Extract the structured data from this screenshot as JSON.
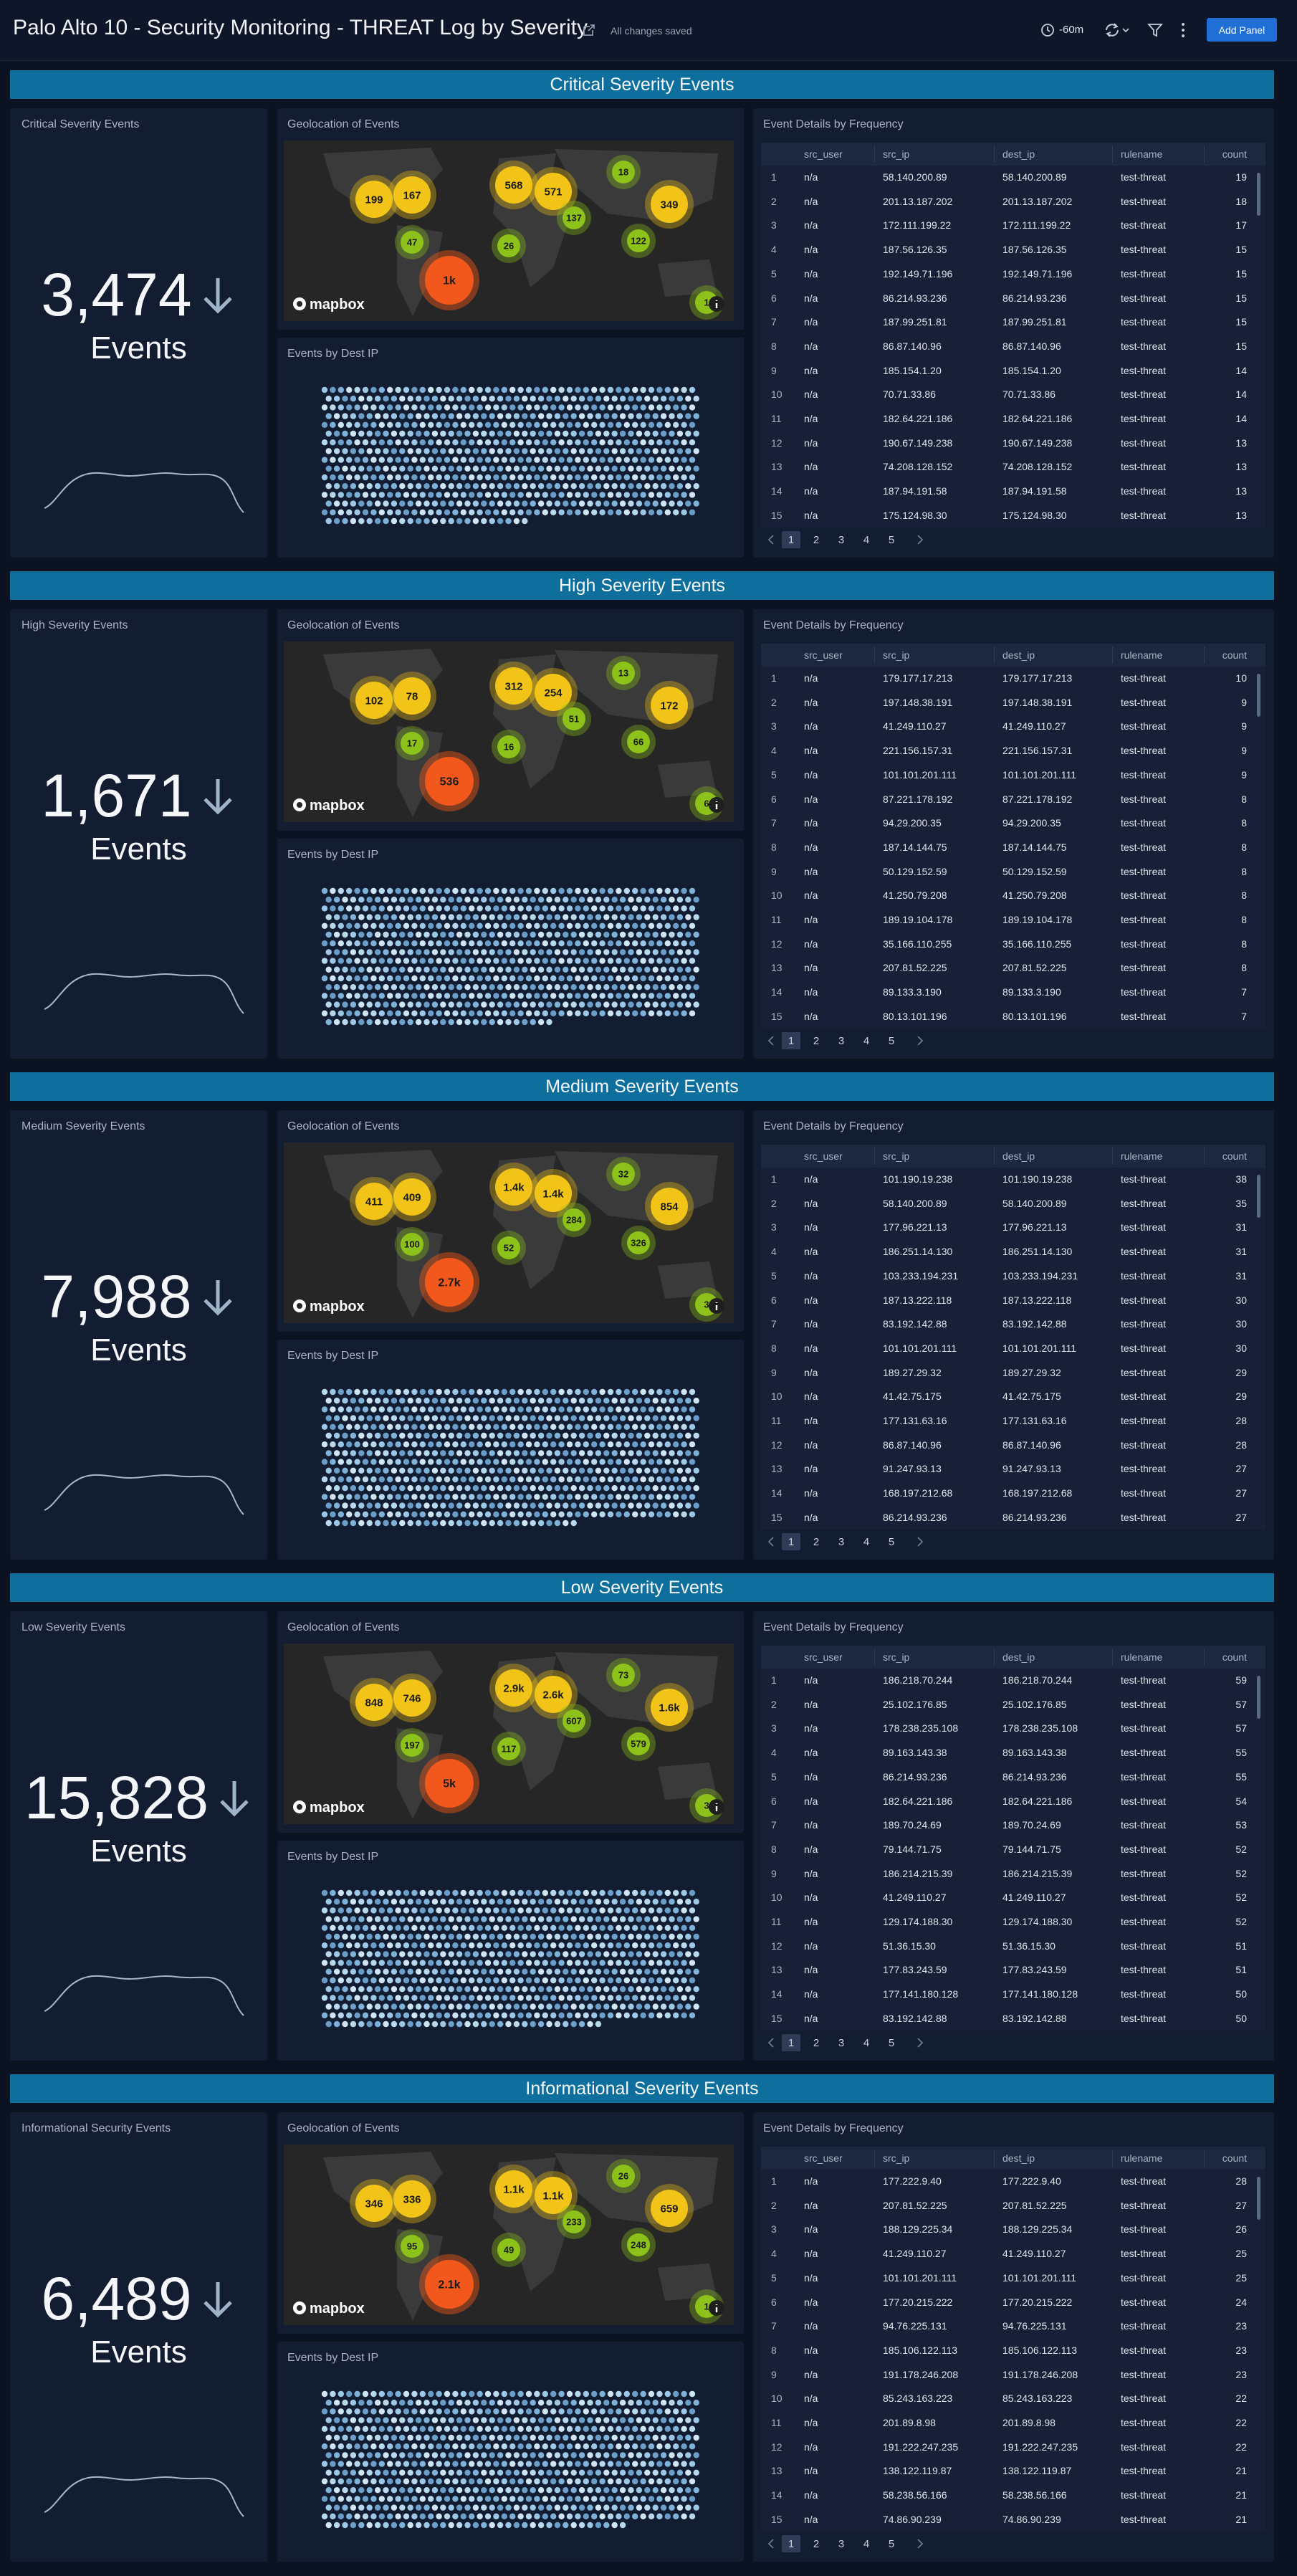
{
  "header": {
    "title": "Palo Alto 10 - Security Monitoring - THREAT Log by Severity",
    "status": "All changes saved",
    "time_range": "-60m",
    "add_panel": "Add Panel"
  },
  "sections": [
    {
      "title": "Critical Severity Events",
      "single": {
        "title": "Critical Severity Events",
        "value": "3,474",
        "unit": "Events"
      },
      "map": {
        "title": "Geolocation of Events",
        "clusters": [
          "199",
          "167",
          "568",
          "571",
          "18",
          "137",
          "349",
          "47",
          "26",
          "122",
          "1k",
          "1"
        ],
        "logo": "mapbox"
      },
      "honeycomb": {
        "title": "Events by Dest IP"
      },
      "table": {
        "title": "Event Details by Frequency",
        "columns": [
          "src_user",
          "src_ip",
          "dest_ip",
          "rulename",
          "count"
        ],
        "rows": [
          [
            1,
            "n/a",
            "58.140.200.89",
            "58.140.200.89",
            "test-threat",
            19
          ],
          [
            2,
            "n/a",
            "201.13.187.202",
            "201.13.187.202",
            "test-threat",
            18
          ],
          [
            3,
            "n/a",
            "172.111.199.22",
            "172.111.199.22",
            "test-threat",
            17
          ],
          [
            4,
            "n/a",
            "187.56.126.35",
            "187.56.126.35",
            "test-threat",
            15
          ],
          [
            5,
            "n/a",
            "192.149.71.196",
            "192.149.71.196",
            "test-threat",
            15
          ],
          [
            6,
            "n/a",
            "86.214.93.236",
            "86.214.93.236",
            "test-threat",
            15
          ],
          [
            7,
            "n/a",
            "187.99.251.81",
            "187.99.251.81",
            "test-threat",
            15
          ],
          [
            8,
            "n/a",
            "86.87.140.96",
            "86.87.140.96",
            "test-threat",
            15
          ],
          [
            9,
            "n/a",
            "185.154.1.20",
            "185.154.1.20",
            "test-threat",
            14
          ],
          [
            10,
            "n/a",
            "70.71.33.86",
            "70.71.33.86",
            "test-threat",
            14
          ],
          [
            11,
            "n/a",
            "182.64.221.186",
            "182.64.221.186",
            "test-threat",
            14
          ],
          [
            12,
            "n/a",
            "190.67.149.238",
            "190.67.149.238",
            "test-threat",
            13
          ],
          [
            13,
            "n/a",
            "74.208.128.152",
            "74.208.128.152",
            "test-threat",
            13
          ],
          [
            14,
            "n/a",
            "187.94.191.58",
            "187.94.191.58",
            "test-threat",
            13
          ],
          [
            15,
            "n/a",
            "175.124.98.30",
            "175.124.98.30",
            "test-threat",
            13
          ]
        ],
        "pages": [
          1,
          2,
          3,
          4,
          5
        ]
      }
    },
    {
      "title": "High Severity Events",
      "single": {
        "title": "High Severity Events",
        "value": "1,671",
        "unit": "Events"
      },
      "map": {
        "title": "Geolocation of Events",
        "clusters": [
          "102",
          "78",
          "312",
          "254",
          "13",
          "51",
          "172",
          "17",
          "16",
          "66",
          "536",
          "6"
        ],
        "logo": "mapbox"
      },
      "honeycomb": {
        "title": "Events by Dest IP"
      },
      "table": {
        "title": "Event Details by Frequency",
        "columns": [
          "src_user",
          "src_ip",
          "dest_ip",
          "rulename",
          "count"
        ],
        "rows": [
          [
            1,
            "n/a",
            "179.177.17.213",
            "179.177.17.213",
            "test-threat",
            10
          ],
          [
            2,
            "n/a",
            "197.148.38.191",
            "197.148.38.191",
            "test-threat",
            9
          ],
          [
            3,
            "n/a",
            "41.249.110.27",
            "41.249.110.27",
            "test-threat",
            9
          ],
          [
            4,
            "n/a",
            "221.156.157.31",
            "221.156.157.31",
            "test-threat",
            9
          ],
          [
            5,
            "n/a",
            "101.101.201.111",
            "101.101.201.111",
            "test-threat",
            9
          ],
          [
            6,
            "n/a",
            "87.221.178.192",
            "87.221.178.192",
            "test-threat",
            8
          ],
          [
            7,
            "n/a",
            "94.29.200.35",
            "94.29.200.35",
            "test-threat",
            8
          ],
          [
            8,
            "n/a",
            "187.14.144.75",
            "187.14.144.75",
            "test-threat",
            8
          ],
          [
            9,
            "n/a",
            "50.129.152.59",
            "50.129.152.59",
            "test-threat",
            8
          ],
          [
            10,
            "n/a",
            "41.250.79.208",
            "41.250.79.208",
            "test-threat",
            8
          ],
          [
            11,
            "n/a",
            "189.19.104.178",
            "189.19.104.178",
            "test-threat",
            8
          ],
          [
            12,
            "n/a",
            "35.166.110.255",
            "35.166.110.255",
            "test-threat",
            8
          ],
          [
            13,
            "n/a",
            "207.81.52.225",
            "207.81.52.225",
            "test-threat",
            8
          ],
          [
            14,
            "n/a",
            "89.133.3.190",
            "89.133.3.190",
            "test-threat",
            7
          ],
          [
            15,
            "n/a",
            "80.13.101.196",
            "80.13.101.196",
            "test-threat",
            7
          ]
        ],
        "pages": [
          1,
          2,
          3,
          4,
          5
        ]
      }
    },
    {
      "title": "Medium Severity Events",
      "single": {
        "title": "Medium Severity Events",
        "value": "7,988",
        "unit": "Events"
      },
      "map": {
        "title": "Geolocation of Events",
        "clusters": [
          "411",
          "409",
          "1.4k",
          "1.4k",
          "32",
          "284",
          "854",
          "100",
          "52",
          "326",
          "2.7k",
          "3"
        ],
        "logo": "mapbox"
      },
      "honeycomb": {
        "title": "Events by Dest IP"
      },
      "table": {
        "title": "Event Details by Frequency",
        "columns": [
          "src_user",
          "src_ip",
          "dest_ip",
          "rulename",
          "count"
        ],
        "rows": [
          [
            1,
            "n/a",
            "101.190.19.238",
            "101.190.19.238",
            "test-threat",
            38
          ],
          [
            2,
            "n/a",
            "58.140.200.89",
            "58.140.200.89",
            "test-threat",
            35
          ],
          [
            3,
            "n/a",
            "177.96.221.13",
            "177.96.221.13",
            "test-threat",
            31
          ],
          [
            4,
            "n/a",
            "186.251.14.130",
            "186.251.14.130",
            "test-threat",
            31
          ],
          [
            5,
            "n/a",
            "103.233.194.231",
            "103.233.194.231",
            "test-threat",
            31
          ],
          [
            6,
            "n/a",
            "187.13.222.118",
            "187.13.222.118",
            "test-threat",
            30
          ],
          [
            7,
            "n/a",
            "83.192.142.88",
            "83.192.142.88",
            "test-threat",
            30
          ],
          [
            8,
            "n/a",
            "101.101.201.111",
            "101.101.201.111",
            "test-threat",
            30
          ],
          [
            9,
            "n/a",
            "189.27.29.32",
            "189.27.29.32",
            "test-threat",
            29
          ],
          [
            10,
            "n/a",
            "41.42.75.175",
            "41.42.75.175",
            "test-threat",
            29
          ],
          [
            11,
            "n/a",
            "177.131.63.16",
            "177.131.63.16",
            "test-threat",
            28
          ],
          [
            12,
            "n/a",
            "86.87.140.96",
            "86.87.140.96",
            "test-threat",
            28
          ],
          [
            13,
            "n/a",
            "91.247.93.13",
            "91.247.93.13",
            "test-threat",
            27
          ],
          [
            14,
            "n/a",
            "168.197.212.68",
            "168.197.212.68",
            "test-threat",
            27
          ],
          [
            15,
            "n/a",
            "86.214.93.236",
            "86.214.93.236",
            "test-threat",
            27
          ]
        ],
        "pages": [
          1,
          2,
          3,
          4,
          5
        ]
      }
    },
    {
      "title": "Low Severity Events",
      "single": {
        "title": "Low Severity Events",
        "value": "15,828",
        "unit": "Events"
      },
      "map": {
        "title": "Geolocation of Events",
        "clusters": [
          "848",
          "746",
          "2.9k",
          "2.6k",
          "73",
          "607",
          "1.6k",
          "197",
          "117",
          "579",
          "5k",
          "3"
        ],
        "logo": "mapbox"
      },
      "honeycomb": {
        "title": "Events by Dest IP"
      },
      "table": {
        "title": "Event Details by Frequency",
        "columns": [
          "src_user",
          "src_ip",
          "dest_ip",
          "rulename",
          "count"
        ],
        "rows": [
          [
            1,
            "n/a",
            "186.218.70.244",
            "186.218.70.244",
            "test-threat",
            59
          ],
          [
            2,
            "n/a",
            "25.102.176.85",
            "25.102.176.85",
            "test-threat",
            57
          ],
          [
            3,
            "n/a",
            "178.238.235.108",
            "178.238.235.108",
            "test-threat",
            57
          ],
          [
            4,
            "n/a",
            "89.163.143.38",
            "89.163.143.38",
            "test-threat",
            55
          ],
          [
            5,
            "n/a",
            "86.214.93.236",
            "86.214.93.236",
            "test-threat",
            55
          ],
          [
            6,
            "n/a",
            "182.64.221.186",
            "182.64.221.186",
            "test-threat",
            54
          ],
          [
            7,
            "n/a",
            "189.70.24.69",
            "189.70.24.69",
            "test-threat",
            53
          ],
          [
            8,
            "n/a",
            "79.144.71.75",
            "79.144.71.75",
            "test-threat",
            52
          ],
          [
            9,
            "n/a",
            "186.214.215.39",
            "186.214.215.39",
            "test-threat",
            52
          ],
          [
            10,
            "n/a",
            "41.249.110.27",
            "41.249.110.27",
            "test-threat",
            52
          ],
          [
            11,
            "n/a",
            "129.174.188.30",
            "129.174.188.30",
            "test-threat",
            52
          ],
          [
            12,
            "n/a",
            "51.36.15.30",
            "51.36.15.30",
            "test-threat",
            51
          ],
          [
            13,
            "n/a",
            "177.83.243.59",
            "177.83.243.59",
            "test-threat",
            51
          ],
          [
            14,
            "n/a",
            "177.141.180.128",
            "177.141.180.128",
            "test-threat",
            50
          ],
          [
            15,
            "n/a",
            "83.192.142.88",
            "83.192.142.88",
            "test-threat",
            50
          ]
        ],
        "pages": [
          1,
          2,
          3,
          4,
          5
        ]
      }
    },
    {
      "title": "Informational Severity Events",
      "single": {
        "title": "Informational Security Events",
        "value": "6,489",
        "unit": "Events"
      },
      "map": {
        "title": "Geolocation of Events",
        "clusters": [
          "346",
          "336",
          "1.1k",
          "1.1k",
          "26",
          "233",
          "659",
          "95",
          "49",
          "248",
          "2.1k",
          "1"
        ],
        "logo": "mapbox"
      },
      "honeycomb": {
        "title": "Events by Dest IP"
      },
      "table": {
        "title": "Event Details by Frequency",
        "columns": [
          "src_user",
          "src_ip",
          "dest_ip",
          "rulename",
          "count"
        ],
        "rows": [
          [
            1,
            "n/a",
            "177.222.9.40",
            "177.222.9.40",
            "test-threat",
            28
          ],
          [
            2,
            "n/a",
            "207.81.52.225",
            "207.81.52.225",
            "test-threat",
            27
          ],
          [
            3,
            "n/a",
            "188.129.225.34",
            "188.129.225.34",
            "test-threat",
            26
          ],
          [
            4,
            "n/a",
            "41.249.110.27",
            "41.249.110.27",
            "test-threat",
            25
          ],
          [
            5,
            "n/a",
            "101.101.201.111",
            "101.101.201.111",
            "test-threat",
            25
          ],
          [
            6,
            "n/a",
            "177.20.215.222",
            "177.20.215.222",
            "test-threat",
            24
          ],
          [
            7,
            "n/a",
            "94.76.225.131",
            "94.76.225.131",
            "test-threat",
            23
          ],
          [
            8,
            "n/a",
            "185.106.122.113",
            "185.106.122.113",
            "test-threat",
            23
          ],
          [
            9,
            "n/a",
            "191.178.246.208",
            "191.178.246.208",
            "test-threat",
            23
          ],
          [
            10,
            "n/a",
            "85.243.163.223",
            "85.243.163.223",
            "test-threat",
            22
          ],
          [
            11,
            "n/a",
            "201.89.8.98",
            "201.89.8.98",
            "test-threat",
            22
          ],
          [
            12,
            "n/a",
            "191.222.247.235",
            "191.222.247.235",
            "test-threat",
            22
          ],
          [
            13,
            "n/a",
            "138.122.119.87",
            "138.122.119.87",
            "test-threat",
            21
          ],
          [
            14,
            "n/a",
            "58.238.56.166",
            "58.238.56.166",
            "test-threat",
            21
          ],
          [
            15,
            "n/a",
            "74.86.90.239",
            "74.86.90.239",
            "test-threat",
            21
          ]
        ],
        "pages": [
          1,
          2,
          3,
          4,
          5
        ]
      }
    }
  ]
}
